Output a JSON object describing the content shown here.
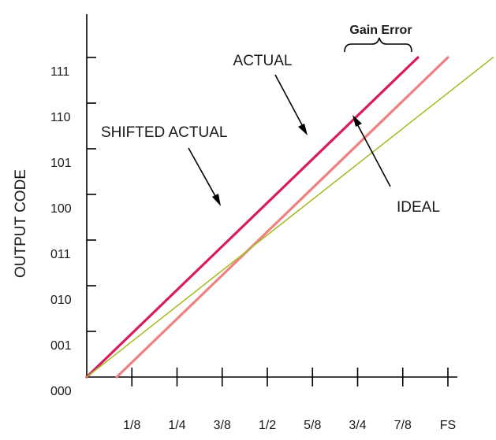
{
  "chart_data": {
    "type": "line",
    "ylabel": "OUTPUT CODE",
    "xlabel": "",
    "x_ticks": [
      "1/8",
      "1/4",
      "3/8",
      "1/2",
      "5/8",
      "3/4",
      "7/8",
      "FS"
    ],
    "y_ticks": [
      "000",
      "001",
      "010",
      "011",
      "100",
      "101",
      "110",
      "111"
    ],
    "xlim": [
      0,
      1
    ],
    "ylim": [
      0,
      7
    ],
    "grid": false,
    "series": [
      {
        "key": "shifted",
        "name": "SHIFTED ACTUAL",
        "color": "#d81b60",
        "points": [
          [
            0,
            0
          ],
          [
            0.917,
            7
          ]
        ]
      },
      {
        "key": "actual",
        "name": "ACTUAL",
        "color": "#f08080",
        "points": [
          [
            0.083,
            0
          ],
          [
            1.0,
            7
          ]
        ]
      },
      {
        "key": "ideal",
        "name": "IDEAL",
        "color": "#a8bd2a",
        "points": [
          [
            0,
            0
          ],
          [
            1.125,
            7
          ]
        ]
      }
    ],
    "annotations": {
      "gain_error": "Gain Error",
      "shifted_actual": "SHIFTED ACTUAL",
      "actual": "ACTUAL",
      "ideal": "IDEAL"
    }
  }
}
